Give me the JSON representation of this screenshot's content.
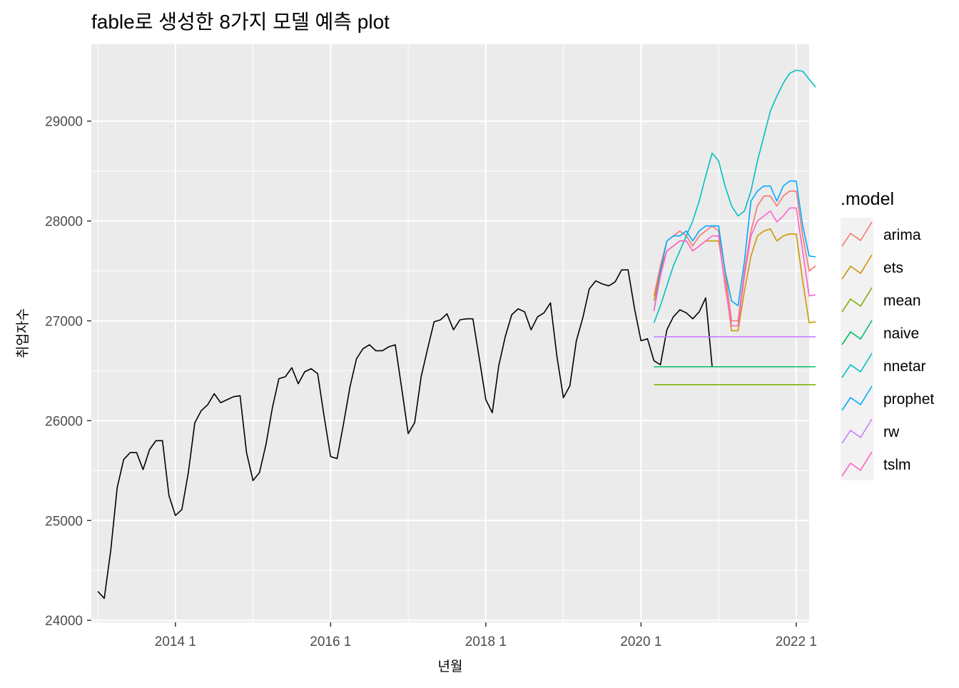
{
  "chart_data": {
    "type": "line",
    "title": "fable로 생성한 8가지 모델 예측 plot",
    "xlabel": "년월",
    "ylabel": "취업자수",
    "xlim": [
      "2012-12",
      "2022-03"
    ],
    "ylim": [
      23980,
      29770
    ],
    "x_ticks": [
      {
        "label": "2014 1",
        "date": "2014-01"
      },
      {
        "label": "2016 1",
        "date": "2016-01"
      },
      {
        "label": "2018 1",
        "date": "2018-01"
      },
      {
        "label": "2020 1",
        "date": "2020-01"
      },
      {
        "label": "2022 1",
        "date": "2022-01"
      }
    ],
    "y_ticks": [
      24000,
      25000,
      26000,
      27000,
      28000,
      29000
    ],
    "grid": true,
    "legend_title": ".model",
    "legend_position": "right",
    "actual": {
      "color": "#000000",
      "start": "2013-01",
      "values": [
        24290,
        24220,
        24700,
        25330,
        25610,
        25680,
        25680,
        25510,
        25710,
        25800,
        25800,
        25250,
        25050,
        25110,
        25480,
        25980,
        26100,
        26160,
        26270,
        26180,
        26210,
        26240,
        26250,
        25680,
        25400,
        25480,
        25760,
        26130,
        26420,
        26440,
        26530,
        26370,
        26490,
        26520,
        26470,
        26040,
        25640,
        25620,
        25970,
        26340,
        26620,
        26720,
        26760,
        26700,
        26700,
        26740,
        26760,
        26320,
        25870,
        25980,
        26440,
        26720,
        26990,
        27010,
        27070,
        26910,
        27010,
        27020,
        27020,
        26620,
        26210,
        26080,
        26550,
        26840,
        27060,
        27120,
        27090,
        26910,
        27040,
        27080,
        27180,
        26640,
        26230,
        26350,
        26800,
        27030,
        27320,
        27400,
        27370,
        27350,
        27390,
        27510,
        27510,
        27120,
        26800,
        26820,
        26600,
        26560,
        26910,
        27040,
        27110,
        27080,
        27020,
        27090,
        27230,
        26540
      ]
    },
    "forecast_start": "2020-03",
    "series": [
      {
        "name": "arima",
        "color": "#F8766D",
        "values": [
          27250,
          27550,
          27800,
          27850,
          27900,
          27850,
          27750,
          27850,
          27900,
          27950,
          27900,
          27500,
          27000,
          27000,
          27500,
          27900,
          28150,
          28250,
          28250,
          28150,
          28250,
          28300,
          28300,
          27850,
          27500,
          27550
        ]
      },
      {
        "name": "ets",
        "color": "#CD9600",
        "values": [
          27200,
          27500,
          27700,
          27750,
          27800,
          27800,
          27700,
          27750,
          27800,
          27800,
          27800,
          27400,
          26900,
          26900,
          27300,
          27650,
          27850,
          27900,
          27920,
          27800,
          27850,
          27870,
          27870,
          27400,
          26980,
          26990
        ]
      },
      {
        "name": "mean",
        "color": "#7CAE00",
        "values": [
          26360,
          26360,
          26360,
          26360,
          26360,
          26360,
          26360,
          26360,
          26360,
          26360,
          26360,
          26360,
          26360,
          26360,
          26360,
          26360,
          26360,
          26360,
          26360,
          26360,
          26360,
          26360,
          26360,
          26360,
          26360,
          26360
        ]
      },
      {
        "name": "naive",
        "color": "#00BE67",
        "values": [
          26540,
          26540,
          26540,
          26540,
          26540,
          26540,
          26540,
          26540,
          26540,
          26540,
          26540,
          26540,
          26540,
          26540,
          26540,
          26540,
          26540,
          26540,
          26540,
          26540,
          26540,
          26540,
          26540,
          26540,
          26540,
          26540
        ]
      },
      {
        "name": "nnetar",
        "color": "#00BFC4",
        "values": [
          26980,
          27150,
          27350,
          27550,
          27700,
          27850,
          28000,
          28200,
          28450,
          28680,
          28600,
          28350,
          28150,
          28050,
          28100,
          28300,
          28600,
          28850,
          29100,
          29250,
          29380,
          29480,
          29510,
          29500,
          29420,
          29340
        ]
      },
      {
        "name": "prophet",
        "color": "#00A9FF",
        "values": [
          27100,
          27500,
          27800,
          27850,
          27850,
          27900,
          27800,
          27900,
          27950,
          27950,
          27950,
          27500,
          27200,
          27150,
          27600,
          28200,
          28300,
          28350,
          28350,
          28200,
          28350,
          28400,
          28400,
          27950,
          27650,
          27640
        ]
      },
      {
        "name": "rw",
        "color": "#C77CFF",
        "values": [
          26840,
          26840,
          26840,
          26840,
          26840,
          26840,
          26840,
          26840,
          26840,
          26840,
          26840,
          26840,
          26840,
          26840,
          26840,
          26840,
          26840,
          26840,
          26840,
          26840,
          26840,
          26840,
          26840,
          26840,
          26840,
          26840
        ]
      },
      {
        "name": "tslm",
        "color": "#FF61CC",
        "values": [
          27100,
          27450,
          27700,
          27750,
          27800,
          27800,
          27700,
          27750,
          27800,
          27850,
          27850,
          27350,
          26950,
          26950,
          27450,
          27850,
          28000,
          28050,
          28100,
          27990,
          28050,
          28130,
          28130,
          27700,
          27250,
          27260
        ]
      }
    ]
  }
}
